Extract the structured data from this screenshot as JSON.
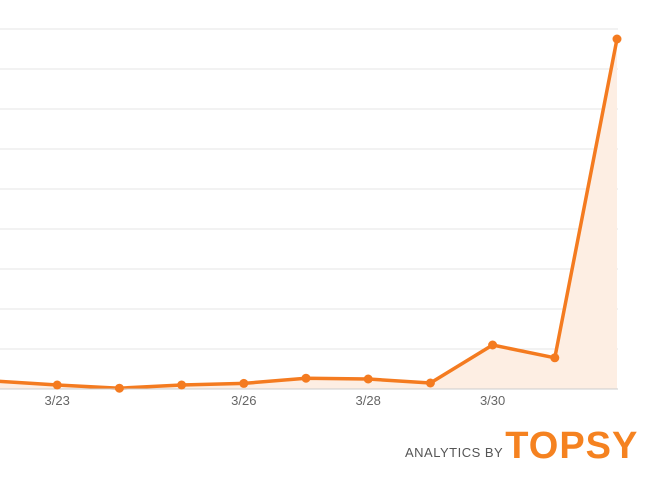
{
  "branding": {
    "prefix": "ANALYTICS BY",
    "name": "TOPSY",
    "name_color": "#F58220"
  },
  "colors": {
    "line": "#F47B20",
    "area": "#FDEEE3",
    "grid": "#E5E5E5",
    "axis": "#CCCCCC",
    "tick_text": "#666666"
  },
  "chart_data": {
    "type": "area",
    "title": "",
    "xlabel": "",
    "ylabel": "",
    "grid": true,
    "legend": "none",
    "x_tick_labels": [
      "3/23",
      "3/26",
      "3/28",
      "3/30"
    ],
    "x": [
      "3/22",
      "3/23",
      "3/24",
      "3/25",
      "3/26",
      "3/27",
      "3/28",
      "3/29",
      "3/30",
      "3/31",
      "4/1"
    ],
    "series": [
      {
        "values": [
          2.0,
          1.0,
          0.2,
          1.0,
          1.4,
          2.7,
          2.5,
          1.5,
          11.0,
          7.8,
          87.5
        ]
      }
    ],
    "ylim": [
      0,
      90
    ],
    "y_grid_step": 10
  }
}
